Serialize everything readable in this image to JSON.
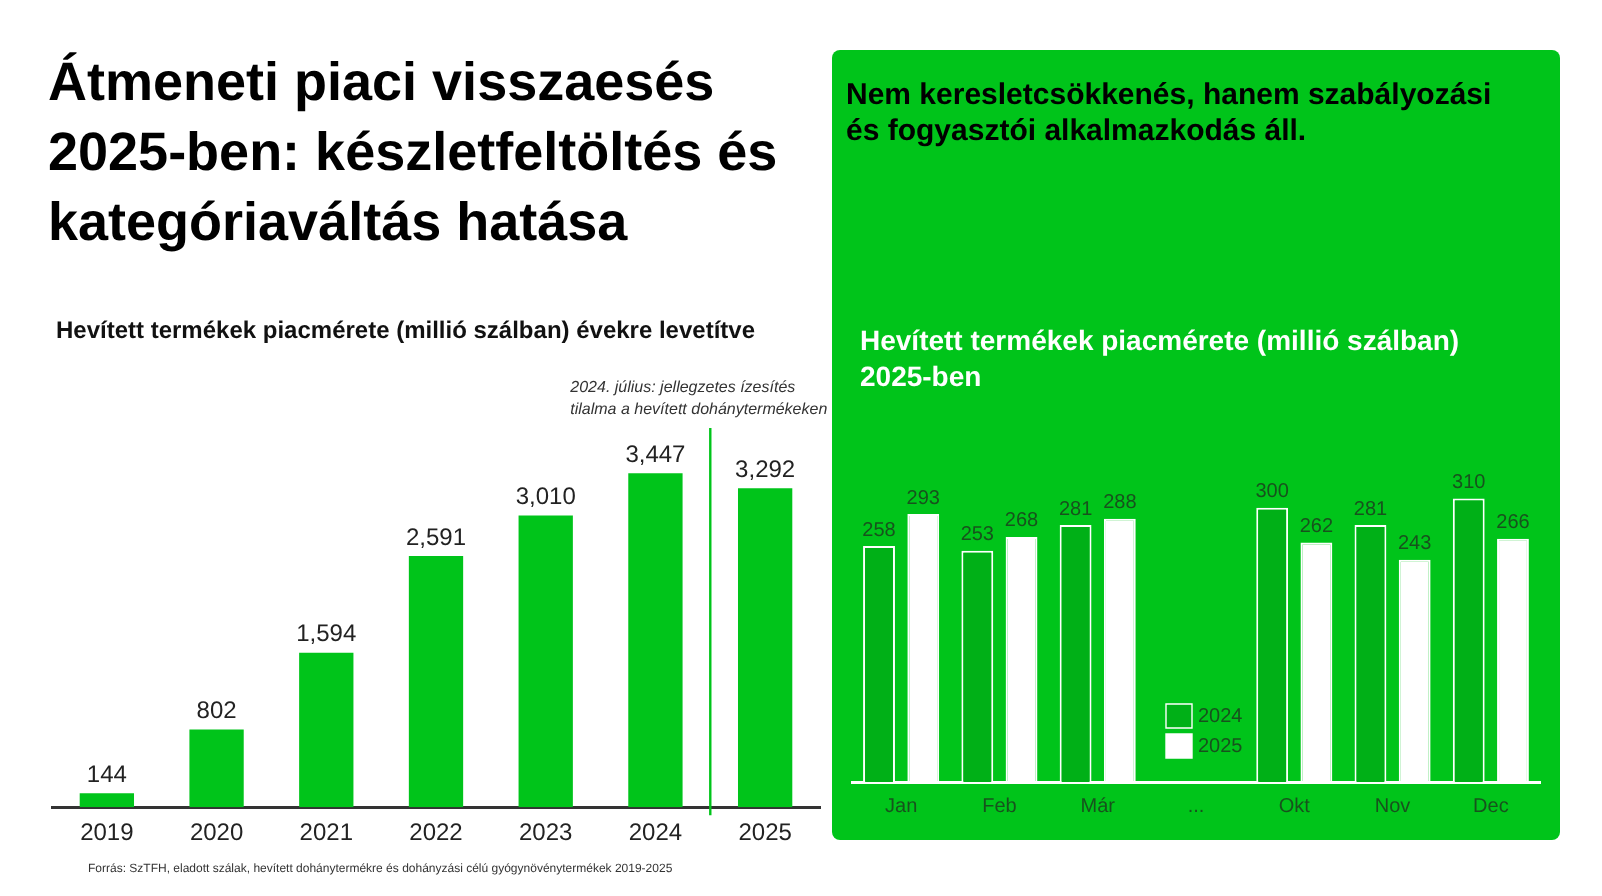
{
  "chart_data": [
    {
      "type": "bar",
      "title": "Hevített termékek piacmérete (millió szálban) évekre levetítve",
      "categories": [
        "2019",
        "2020",
        "2021",
        "2022",
        "2023",
        "2024",
        "2025"
      ],
      "values": [
        144,
        802,
        1594,
        2591,
        3010,
        3447,
        3292
      ],
      "value_labels": [
        "144",
        "802",
        "1,594",
        "2,591",
        "3,010",
        "3,447",
        "3,292"
      ],
      "color": "#00c41a",
      "tick_labels": "x",
      "grid": false,
      "legend": false,
      "ref_lines": [
        {
          "axis": "x",
          "value": "2024",
          "label": "2024. július: jellegzetes ízesítés tilalma a hevített dohánytermékeken",
          "color": "#00c41a"
        }
      ],
      "annotations": [
        "Átmeneti piaci visszaesés 2025-ben: készletfeltöltés és kategóriaváltás hatása",
        "Forrás: SzTFH, eladott szálak, hevített dohánytermékre és dohányzási célú gyógynövénytermékek  2019-2025"
      ]
    },
    {
      "type": "bar",
      "title": "Hevített termékek piacmérete (millió szálban) 2025-ben",
      "categories": [
        "Jan",
        "Feb",
        "Már",
        "...",
        "Okt",
        "Nov",
        "Dec"
      ],
      "series": [
        {
          "name": "2024",
          "color": "#00b017",
          "values": [
            258,
            253,
            281,
            null,
            300,
            281,
            310
          ]
        },
        {
          "name": "2025",
          "color": "#ffffff",
          "values": [
            293,
            268,
            288,
            null,
            262,
            243,
            266
          ]
        }
      ],
      "tick_labels": "x",
      "grid": false,
      "legend": "bottom",
      "data_labels": true,
      "annotations": [
        "Nem keresletcsökkenés, hanem szabályozási és fogyasztói alkalmazkodás áll."
      ]
    }
  ]
}
